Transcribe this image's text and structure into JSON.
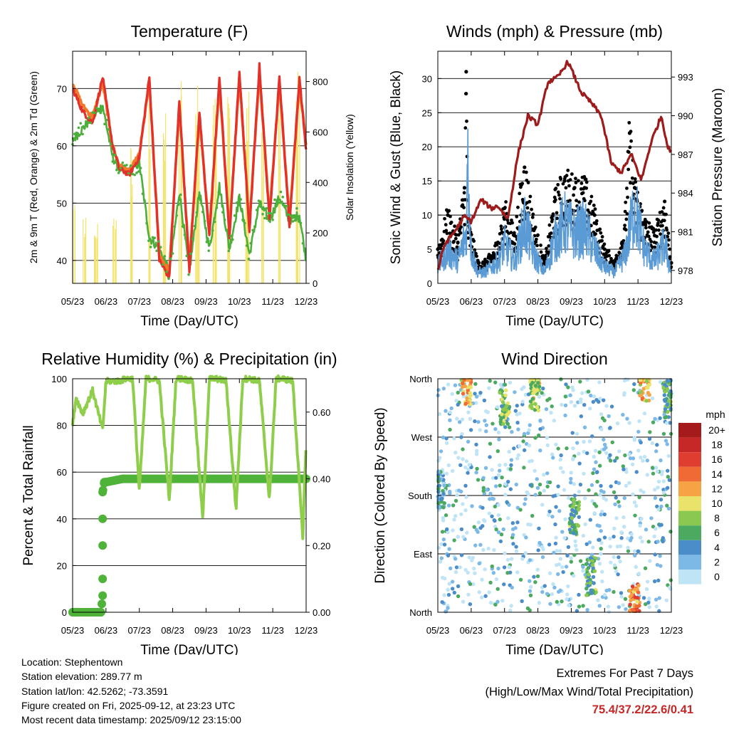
{
  "chart_data": [
    {
      "id": "temperature",
      "type": "line",
      "title": "Temperature (F)",
      "xlabel": "Time (Day/UTC)",
      "ylabel": "2m & 9m T (Red, Orange) & 2m Td (Green)",
      "ylabel_right": "Solar Insolation (Yellow)",
      "x_ticks": [
        "05/23",
        "06/23",
        "07/23",
        "08/23",
        "09/23",
        "10/23",
        "11/23",
        "12/23"
      ],
      "ylim": [
        36,
        76.5
      ],
      "y_ticks": [
        40,
        50,
        60,
        70
      ],
      "ylim_right": [
        0,
        920
      ],
      "y_ticks_right": [
        0,
        200,
        400,
        600,
        800
      ],
      "grid": true,
      "series": [
        {
          "name": "2m T",
          "color": "#e3302a",
          "x": [
            0,
            0.3,
            0.6,
            0.9,
            1.2,
            1.4,
            1.7,
            2.0,
            2.3,
            2.6,
            2.9,
            3.2,
            3.5,
            3.8,
            4.1,
            4.4,
            4.7,
            5.0,
            5.3,
            5.6,
            5.9,
            6.2,
            6.5,
            6.8,
            7.0
          ],
          "values": [
            70,
            66,
            64,
            72,
            60,
            56,
            55,
            58,
            72,
            40,
            37,
            68,
            38,
            66,
            44,
            72,
            44,
            73,
            45,
            74,
            47,
            72,
            46,
            72,
            59
          ]
        },
        {
          "name": "9m T",
          "color": "#f07a2a",
          "x": [
            0,
            0.3,
            0.6,
            0.9,
            1.2,
            1.4,
            1.7,
            2.0,
            2.3,
            2.6,
            2.9,
            3.2,
            3.5,
            3.8,
            4.1,
            4.4,
            4.7,
            5.0,
            5.3,
            5.6,
            5.9,
            6.2,
            6.5,
            6.8,
            7.0
          ],
          "values": [
            71,
            67,
            65,
            71,
            60,
            56.5,
            55.5,
            58.5,
            71,
            41,
            38,
            67,
            39,
            65,
            45,
            71,
            45,
            72,
            46,
            73,
            48,
            71,
            47,
            71,
            60
          ]
        },
        {
          "name": "2m Td",
          "color": "#4caf3c",
          "x": [
            0,
            0.3,
            0.6,
            0.9,
            1.2,
            1.4,
            1.7,
            2.0,
            2.3,
            2.6,
            2.9,
            3.2,
            3.5,
            3.8,
            4.1,
            4.4,
            4.7,
            5.0,
            5.3,
            5.6,
            5.9,
            6.2,
            6.5,
            6.8,
            7.0
          ],
          "values": [
            61,
            63,
            65,
            67,
            58,
            56,
            55.5,
            57,
            44,
            42,
            38,
            52,
            38,
            52,
            42,
            53,
            42,
            51,
            41,
            50,
            47,
            51,
            47,
            48,
            40
          ]
        },
        {
          "name": "Solar Insolation",
          "color": "#f3e36b",
          "axis": "right",
          "x": [
            0.05,
            0.35,
            0.7,
            1.25,
            1.75,
            2.3,
            2.75,
            3.25,
            3.75,
            4.25,
            4.7,
            5.25,
            5.7,
            6.2,
            6.75
          ],
          "values": [
            310,
            280,
            250,
            330,
            570,
            730,
            880,
            860,
            800,
            780,
            760,
            760,
            760,
            760,
            910
          ]
        }
      ]
    },
    {
      "id": "winds",
      "type": "line",
      "title": "Winds (mph) & Pressure (mb)",
      "xlabel": "Time (Day/UTC)",
      "ylabel": "Sonic Wind & Gust (Blue, Black)",
      "ylabel_right": "Station Pressure (Maroon)",
      "x_ticks": [
        "05/23",
        "06/23",
        "07/23",
        "08/23",
        "09/23",
        "10/23",
        "11/23",
        "12/23"
      ],
      "ylim": [
        0,
        34
      ],
      "y_ticks": [
        0,
        5,
        10,
        15,
        20,
        25,
        30
      ],
      "ylim_right": [
        977,
        995
      ],
      "y_ticks_right": [
        978,
        981,
        984,
        987,
        990,
        993
      ],
      "grid": true,
      "series": [
        {
          "name": "Station Pressure",
          "color": "#9e1b1b",
          "axis": "right",
          "x": [
            0,
            0.2,
            0.5,
            0.8,
            1.0,
            1.3,
            1.6,
            1.8,
            2.1,
            2.4,
            2.7,
            3.0,
            3.3,
            3.6,
            3.9,
            4.3,
            4.6,
            4.9,
            5.2,
            5.5,
            5.8,
            6.1,
            6.4,
            6.7,
            6.9,
            7.0
          ],
          "values": [
            978,
            980,
            981,
            982.2,
            981.8,
            983.5,
            982.8,
            983,
            982,
            987,
            990,
            989.3,
            992.6,
            993,
            994.2,
            991.8,
            991,
            990,
            986.3,
            985.6,
            987,
            985,
            988,
            990,
            987.5,
            987.3
          ]
        },
        {
          "name": "Sonic Wind",
          "color": "#5b9bd5",
          "x": [
            0,
            0.3,
            0.6,
            0.85,
            0.9,
            1.0,
            1.2,
            1.4,
            1.6,
            1.8,
            2.0,
            2.3,
            2.6,
            2.9,
            3.2,
            3.5,
            3.8,
            4.1,
            4.4,
            4.7,
            5.0,
            5.3,
            5.6,
            5.9,
            6.2,
            6.5,
            6.8,
            7.0
          ],
          "values": [
            3,
            6,
            4,
            9,
            22,
            6,
            2,
            2,
            3,
            4,
            7,
            4,
            11,
            5,
            2,
            8,
            11,
            9,
            10,
            6,
            3,
            2,
            5,
            14,
            6,
            4,
            7,
            2
          ]
        },
        {
          "name": "Gust",
          "color": "#000000",
          "marker": "dot",
          "x": [
            0,
            0.3,
            0.6,
            0.8,
            0.85,
            0.9,
            1.2,
            1.4,
            1.6,
            1.8,
            2.0,
            2.3,
            2.6,
            2.9,
            3.2,
            3.5,
            3.8,
            4.1,
            4.4,
            4.7,
            5.0,
            5.3,
            5.6,
            5.75,
            5.9,
            6.2,
            6.5,
            6.8,
            7.0
          ],
          "values": [
            5,
            10,
            6,
            14,
            31,
            9,
            3,
            3,
            4,
            6,
            11,
            7,
            17,
            8,
            3,
            12,
            15,
            14,
            14,
            10,
            5,
            3,
            8,
            22,
            14,
            9,
            7,
            12,
            3
          ]
        }
      ]
    },
    {
      "id": "humidity",
      "type": "line",
      "title": "Relative Humidity (%) & Precipitation (in)",
      "xlabel": "Time (Day/UTC)",
      "ylabel": "Percent & Total Rainfall",
      "x_ticks": [
        "05/23",
        "06/23",
        "07/23",
        "08/23",
        "09/23",
        "10/23",
        "11/23",
        "12/23"
      ],
      "ylim": [
        0,
        100
      ],
      "y_ticks": [
        0,
        20,
        40,
        60,
        80,
        100
      ],
      "ylim_right": [
        0,
        0.7
      ],
      "y_ticks_right": [
        "0.00",
        "0.20",
        "0.40",
        "0.60"
      ],
      "grid": true,
      "series": [
        {
          "name": "Relative Humidity",
          "color": "#8fce4b",
          "x": [
            0,
            0.1,
            0.3,
            0.6,
            0.9,
            1.0,
            1.2,
            1.4,
            1.6,
            1.8,
            2.0,
            2.2,
            2.4,
            2.6,
            2.9,
            3.1,
            3.3,
            3.6,
            3.9,
            4.1,
            4.3,
            4.6,
            4.9,
            5.1,
            5.3,
            5.6,
            5.9,
            6.1,
            6.3,
            6.6,
            6.9,
            7.0
          ],
          "values": [
            80,
            92,
            85,
            95,
            78,
            99,
            99,
            99,
            100,
            100,
            52,
            100,
            100,
            99,
            48,
            100,
            100,
            99,
            40,
            100,
            100,
            99,
            44,
            100,
            100,
            99,
            48,
            100,
            100,
            99,
            32,
            74
          ]
        },
        {
          "name": "Total Precipitation",
          "color": "#4fb33a",
          "axis": "right",
          "marker": "dot",
          "x": [
            0,
            0.5,
            0.85,
            0.9,
            0.9,
            0.9,
            0.9,
            0.9,
            0.95,
            1.0,
            1.5,
            2.0,
            3.0,
            4.0,
            5.0,
            6.0,
            7.0
          ],
          "values": [
            0,
            0,
            0,
            0.05,
            0.1,
            0.2,
            0.28,
            0.36,
            0.39,
            0.39,
            0.4,
            0.4,
            0.4,
            0.4,
            0.4,
            0.4,
            0.4
          ]
        }
      ]
    },
    {
      "id": "wind_direction",
      "type": "scatter",
      "title": "Wind Direction",
      "xlabel": "Time (Day/UTC)",
      "ylabel": "Direction (Colored By Speed)",
      "x_ticks": [
        "05/23",
        "06/23",
        "07/23",
        "08/23",
        "09/23",
        "10/23",
        "11/23",
        "12/23"
      ],
      "y_ticks": [
        "North",
        "East",
        "South",
        "West",
        "North"
      ],
      "ylim": [
        0,
        360
      ],
      "grid": true,
      "colorbar": {
        "title": "mph",
        "labels": [
          "20+",
          "18",
          "16",
          "14",
          "12",
          "10",
          "8",
          "6",
          "4",
          "2",
          "0"
        ],
        "colors": [
          "#a51b1b",
          "#c62828",
          "#de3d2f",
          "#f06a35",
          "#f6a346",
          "#e9e36b",
          "#8bc850",
          "#4ca960",
          "#4a8dc8",
          "#7cb9e6",
          "#bfe4f6"
        ]
      },
      "clusters": [
        {
          "x": 0.05,
          "dir": 190,
          "speed": 4
        },
        {
          "x": 0.85,
          "dir": 350,
          "speed": 12
        },
        {
          "x": 2.0,
          "dir": 315,
          "speed": 8
        },
        {
          "x": 2.9,
          "dir": 340,
          "speed": 9
        },
        {
          "x": 4.1,
          "dir": 150,
          "speed": 7
        },
        {
          "x": 4.6,
          "dir": 55,
          "speed": 7
        },
        {
          "x": 5.9,
          "dir": 15,
          "speed": 14
        },
        {
          "x": 6.2,
          "dir": 355,
          "speed": 12
        },
        {
          "x": 6.9,
          "dir": 330,
          "speed": 6
        }
      ]
    }
  ],
  "info": {
    "location": "Location: Stephentown",
    "elevation": "Station elevation: 289.77 m",
    "latlon": "Station lat/lon: 42.5262; -73.3591",
    "created": "Figure created on Fri, 2025-09-12, at 23:23 UTC",
    "recent": "Most recent data timestamp: 2025/09/12 23:15:00"
  },
  "extremes": {
    "title": "Extremes For Past 7 Days",
    "subtitle": "(High/Low/Max Wind/Total Precipitation)",
    "values": "75.4/37.2/22.6/0.41"
  }
}
